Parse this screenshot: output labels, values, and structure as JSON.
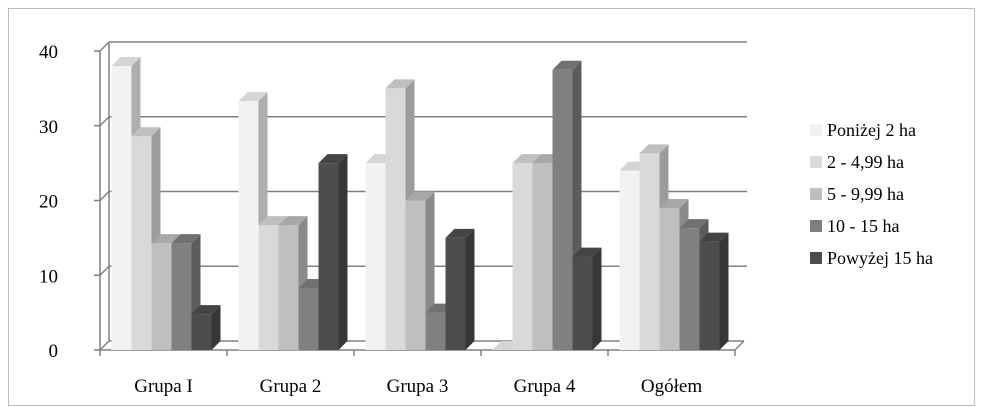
{
  "chart_data": {
    "type": "bar",
    "categories": [
      "Grupa I",
      "Grupa 2",
      "Grupa 3",
      "Grupa 4",
      "Ogółem"
    ],
    "series": [
      {
        "name": "Poniżej 2 ha",
        "values": [
          38,
          33.3,
          25,
          0,
          24
        ],
        "color": "#f2f2f2"
      },
      {
        "name": "2 - 4,99 ha",
        "values": [
          28.6,
          16.7,
          35,
          25,
          26.3
        ],
        "color": "#d9d9d9"
      },
      {
        "name": "5 - 9,99 ha",
        "values": [
          14.3,
          16.7,
          20,
          25,
          19
        ],
        "color": "#bfbfbf"
      },
      {
        "name": "10 - 15 ha",
        "values": [
          14.3,
          8.3,
          5,
          37.5,
          16.3
        ],
        "color": "#808080"
      },
      {
        "name": "Powyżej 15 ha",
        "values": [
          4.8,
          25,
          15,
          12.5,
          14.5
        ],
        "color": "#4d4d4d"
      }
    ],
    "y_ticks": [
      0,
      10,
      20,
      30,
      40
    ],
    "ylim": [
      0,
      40
    ],
    "grid": true,
    "legend_position": "right",
    "title": "",
    "xlabel": "",
    "ylabel": ""
  }
}
